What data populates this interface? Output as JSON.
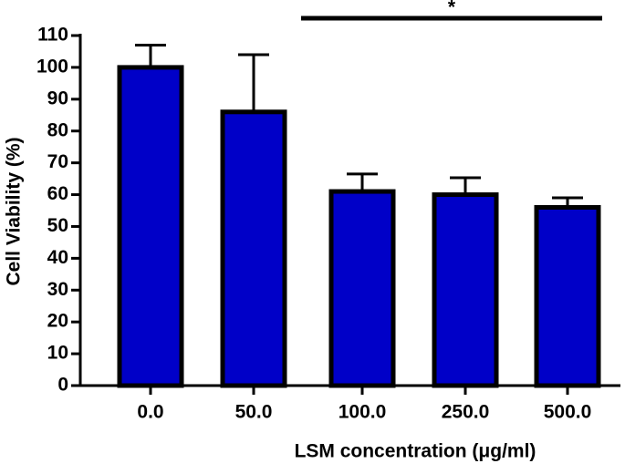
{
  "chart_data": {
    "type": "bar",
    "xlabel": "LSM concentration (μg/ml)",
    "ylabel": "Cell Viability (%)",
    "categories": [
      "0.0",
      "50.0",
      "100.0",
      "250.0",
      "500.0"
    ],
    "values": [
      100,
      86,
      61,
      60,
      56
    ],
    "errors": [
      7,
      18,
      5.5,
      5.3,
      3
    ],
    "color": "#0000c8",
    "ylim": [
      0,
      110
    ],
    "yticks": [
      0,
      10,
      20,
      30,
      40,
      50,
      60,
      70,
      80,
      90,
      100,
      110
    ],
    "annotation": "*"
  }
}
